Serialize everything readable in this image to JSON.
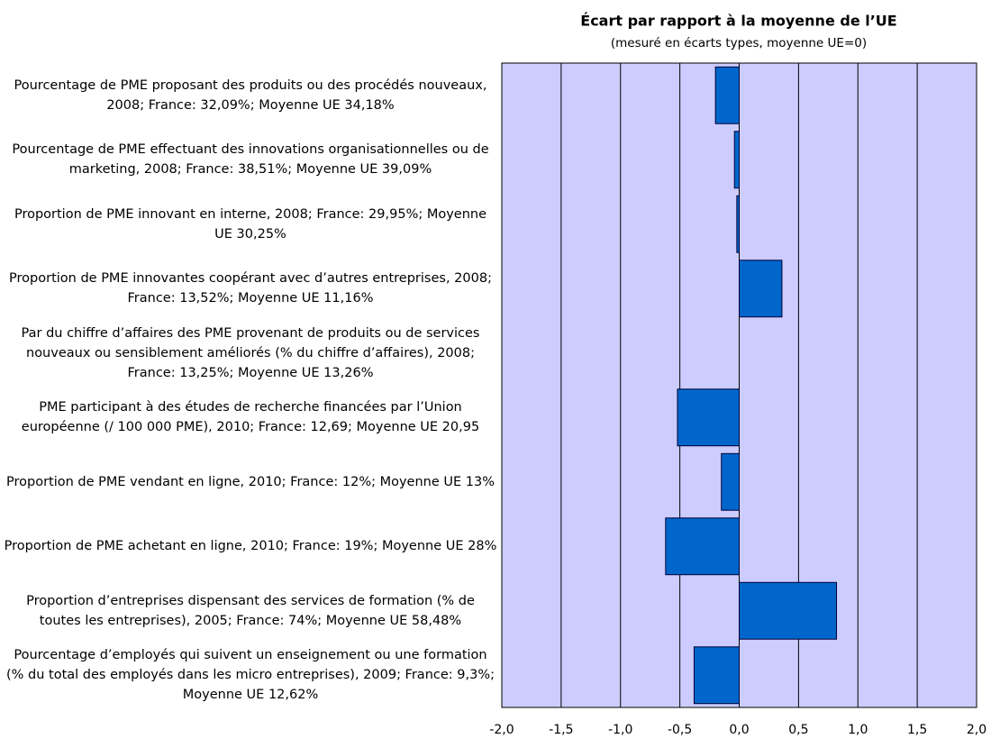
{
  "chart_data": {
    "type": "barh",
    "title": "Écart par rapport à la moyenne de l’UE",
    "subtitle": "(mesuré en écarts types, moyenne UE=0)",
    "categories": [
      "Pourcentage de PME proposant des produits ou des procédés nouveaux, 2008; France: 32,09%; Moyenne UE 34,18%",
      "Pourcentage de PME effectuant des innovations organisationnelles ou de marketing, 2008; France: 38,51%; Moyenne UE 39,09%",
      "Proportion de PME innovant en interne, 2008; France: 29,95%; Moyenne UE 30,25%",
      "Proportion de PME innovantes coopérant avec d’autres entreprises, 2008; France: 13,52%; Moyenne UE 11,16%",
      "Par du chiffre d’affaires des PME provenant de produits ou de services nouveaux ou sensiblement améliorés (% du chiffre d’affaires), 2008; France: 13,25%; Moyenne UE 13,26%",
      "PME participant à des études de recherche financées par l’Union européenne (/ 100 000 PME), 2010; France: 12,69; Moyenne UE 20,95",
      "Proportion de PME vendant en ligne, 2010; France: 12%; Moyenne UE 13%",
      "Proportion de PME achetant en ligne, 2010; France: 19%; Moyenne UE 28%",
      "Proportion d’entreprises dispensant des services de formation (% de toutes les entreprises), 2005; France: 74%; Moyenne UE 58,48%",
      "Pourcentage d’employés qui suivent un enseignement ou une formation (% du total des employés dans les micro entreprises), 2009; France: 9,3%; Moyenne UE 12,62%"
    ],
    "values": [
      -0.2,
      -0.04,
      -0.02,
      0.36,
      0.0,
      -0.52,
      -0.15,
      -0.62,
      0.82,
      -0.38
    ],
    "color": "#0066cc",
    "background": "#ccccff",
    "xlim": [
      -2,
      2
    ],
    "xticks": [
      {
        "value": -2,
        "label": "-2,0"
      },
      {
        "value": -1.5,
        "label": "-1,5"
      },
      {
        "value": -1,
        "label": "-1,0"
      },
      {
        "value": -0.5,
        "label": "-0,5"
      },
      {
        "value": 0,
        "label": "0,0"
      },
      {
        "value": 0.5,
        "label": "0,5"
      },
      {
        "value": 1,
        "label": "1,0"
      },
      {
        "value": 1.5,
        "label": "1,5"
      },
      {
        "value": 2,
        "label": "2,0"
      }
    ],
    "grid": true
  }
}
